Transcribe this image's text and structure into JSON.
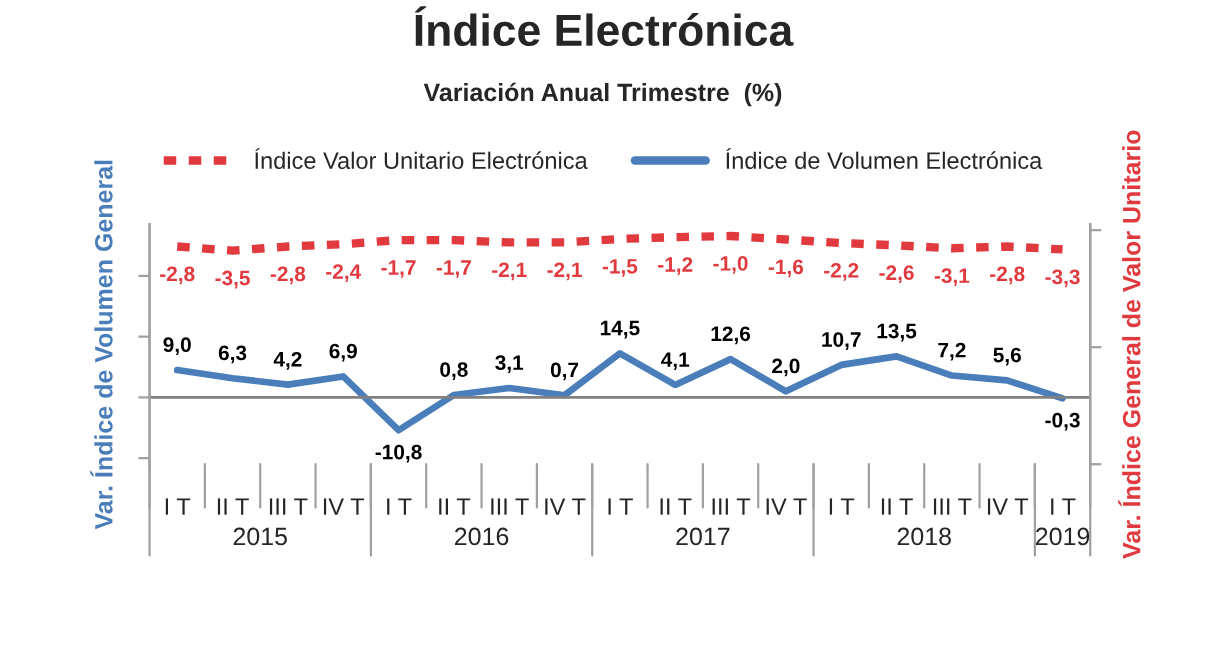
{
  "chart_data": {
    "type": "line",
    "title": "Índice Electrónica",
    "subtitle": "Variación Anual Trimestre  (%)",
    "ylabel": "Var. Índice de Volumen General",
    "y2label": "Var. Índice General de Valor Unitario",
    "categories": [
      "I T",
      "II T",
      "III T",
      "IV T",
      "I T",
      "II T",
      "III T",
      "IV T",
      "I T",
      "II T",
      "III T",
      "IV T",
      "I T",
      "II T",
      "III T",
      "IV T",
      "I T"
    ],
    "annotations": [
      "2015",
      "2016",
      "2017",
      "2018",
      "2019"
    ],
    "series": [
      {
        "name": "Índice Valor Unitario Electrónica",
        "color": "#e0393e",
        "axis": "y2",
        "line_style": "dashed",
        "values": [
          -2.8,
          -3.5,
          -2.8,
          -2.4,
          -1.7,
          -1.7,
          -2.1,
          -2.1,
          -1.5,
          -1.2,
          -1.0,
          -1.6,
          -2.2,
          -2.6,
          -3.1,
          -2.8,
          -3.3
        ],
        "value_labels": [
          "-2,8",
          "-3,5",
          "-2,8",
          "-2,4",
          "-1,7",
          "-1,7",
          "-2,1",
          "-2,1",
          "-1,5",
          "-1,2",
          "-1,0",
          "-1,6",
          "-2,2",
          "-2,6",
          "-3,1",
          "-2,8",
          "-3,3"
        ]
      },
      {
        "name": "Índice de Volumen Electrónica",
        "color": "#4a7ebb",
        "line_style": "solid",
        "values": [
          9.0,
          6.3,
          4.2,
          6.9,
          -10.8,
          0.8,
          3.1,
          0.7,
          14.5,
          4.1,
          12.6,
          2.0,
          10.7,
          13.5,
          7.2,
          5.6,
          -0.3
        ],
        "value_labels": [
          "9,0",
          "6,3",
          "4,2",
          "6,9",
          "-10,8",
          "0,8",
          "3,1",
          "0,7",
          "14,5",
          "4,1",
          "12,6",
          "2,0",
          "10,7",
          "13,5",
          "7,2",
          "5,6",
          "-0,3"
        ]
      }
    ],
    "ylim": [
      -22,
      57
    ],
    "y2lim": [
      -40,
      1
    ],
    "ref_lines": [
      {
        "axis": "y",
        "value": 0,
        "color": "#808080"
      }
    ],
    "legend": "top",
    "grid": false,
    "marker": "none",
    "tick_labels": "x"
  }
}
